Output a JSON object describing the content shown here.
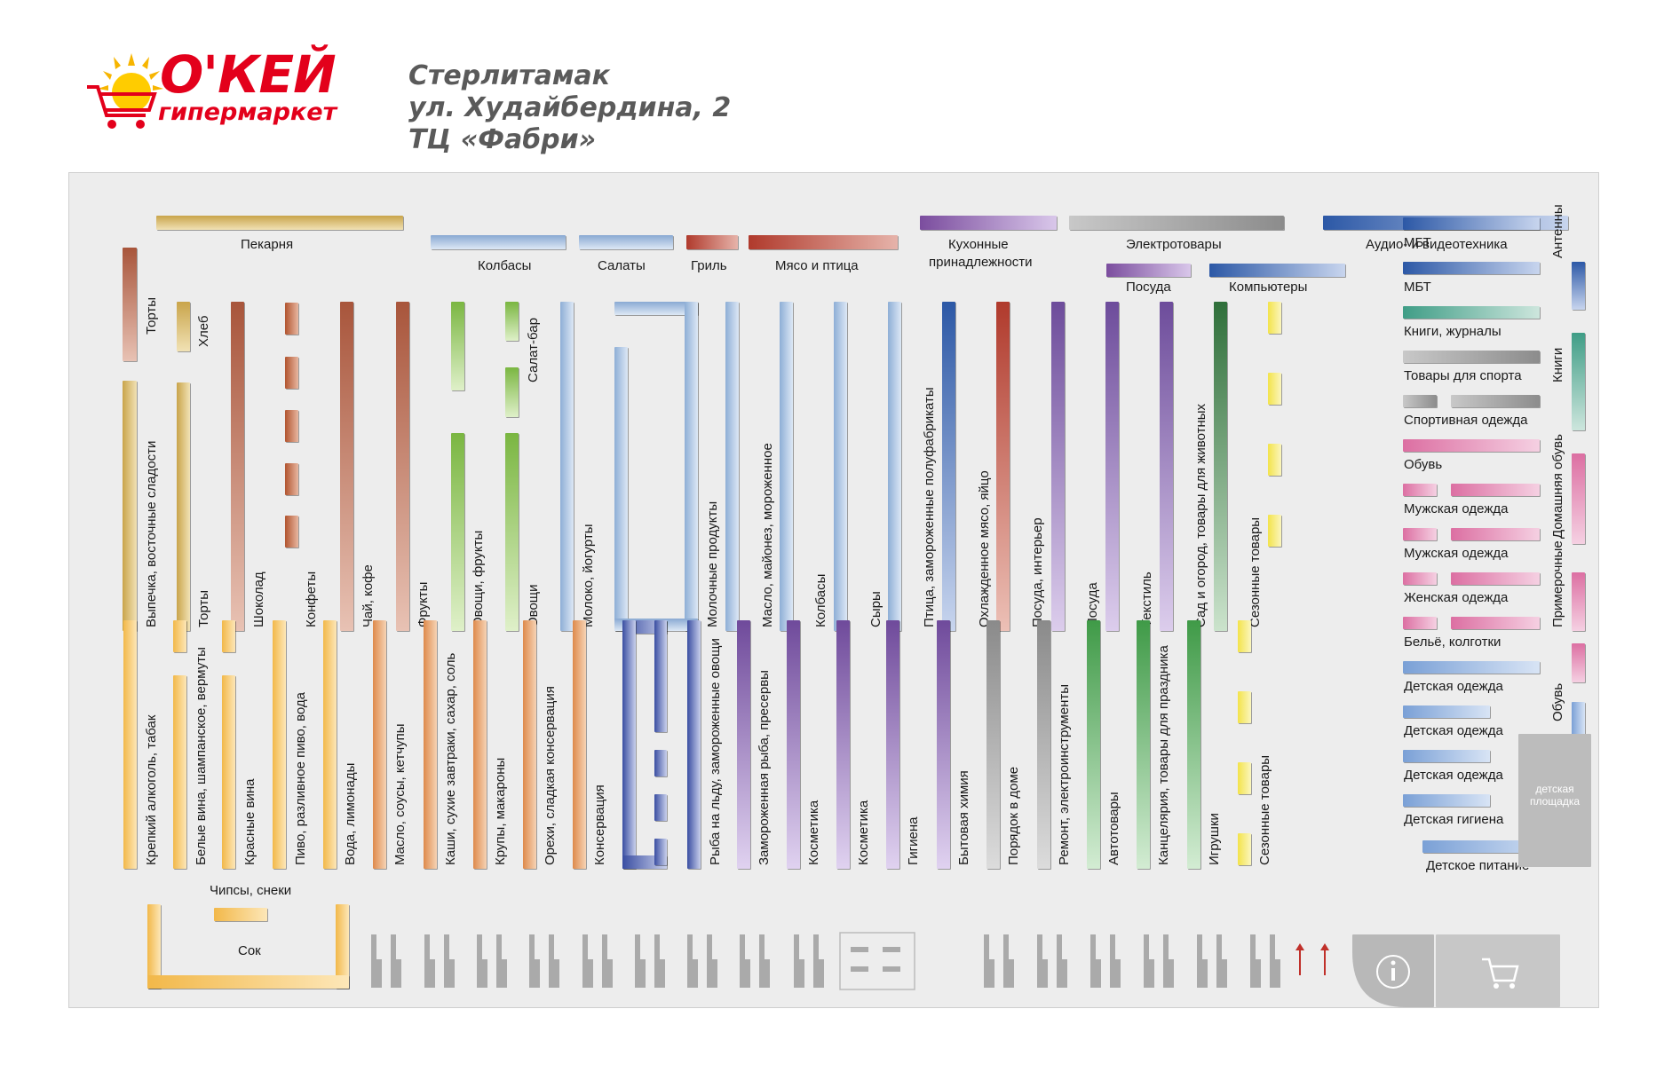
{
  "brand": {
    "name": "О'КЕЙ",
    "subtitle": "гипермаркет",
    "color": "#e3001b"
  },
  "header": {
    "city": "Стерлитамак",
    "street": "ул. Худайбердина, 2",
    "mall": "ТЦ «Фабри»"
  },
  "sections": {
    "bakery": "Пекарня",
    "sausages": "Колбасы",
    "salads": "Салаты",
    "grill": "Гриль",
    "meat_poultry": "Мясо и птица",
    "kitchen_line1": "Кухонные",
    "kitchen_line2": "принадлежности",
    "electronics": "Электротовары",
    "audio_video": "Аудио- и видеотехника",
    "tableware": "Посуда",
    "computers": "Компьютеры",
    "juice": "Сок",
    "chips": "Чипсы, снеки",
    "playground": "детская площадка"
  },
  "top_aisles": [
    "Торты",
    "Выпечка, восточные сладости",
    "Хлеб",
    "Торты",
    "Шоколад",
    "Конфеты",
    "Чай, кофе",
    "Фрукты",
    "Овощи, фрукты",
    "Салат-бар",
    "Овощи",
    "Молоко, йогурты",
    "Молочные продукты",
    "Масло, майонез, мороженное",
    "Колбасы",
    "Сыры",
    "Птица, замороженные полуфабрикаты",
    "Охлажденное мясо, яйцо",
    "Посуда, интерьер",
    "Посуда",
    "Текстиль",
    "Сад и огород,  товары для животных",
    "Сезонные товары"
  ],
  "bottom_aisles": [
    "Крепкий алкоголь, табак",
    "Белые вина, шампанское, вермуты",
    "Красные вина",
    "Пиво, разливное пиво, вода",
    "Вода, лимонады",
    "Масло, соусы, кетчупы",
    "Каши, сухие завтраки, сахар, соль",
    "Крупы, макароны",
    "Орехи, сладкая консервация",
    "Консервация",
    "Рыба на льду, замороженные овощи",
    "Замороженная рыба, пресервы",
    "Косметика",
    "Косметика",
    "Гигиена",
    "Бытовая химия",
    "Порядок в доме",
    "Ремонт, электроинструменты",
    "Автотовары",
    "Канцелярия, товары для праздника",
    "Игрушки",
    "Сезонные товары"
  ],
  "right_labels": [
    "МБТ",
    "МБТ",
    "Книги, журналы",
    "Товары для спорта",
    "Спортивная одежда",
    "Обувь",
    "Мужская одежда",
    "Мужская одежда",
    "Женская одежда",
    "Бельё, колготки",
    "Детская одежда",
    "Детская одежда",
    "Детская одежда",
    "Детская гигиена",
    "Детское питание"
  ],
  "right_vertical": [
    "Антенны",
    "Книги",
    "Домашняя обувь",
    "Примерочные",
    "Обувь"
  ],
  "icons": [
    "info-icon",
    "shopping-cart-icon",
    "entrance-arrow-icon"
  ]
}
